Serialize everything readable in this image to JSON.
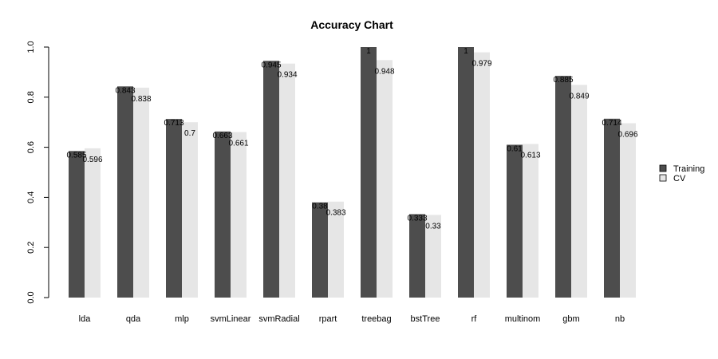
{
  "chart_data": {
    "type": "bar",
    "title": "Accuracy Chart",
    "xlabel": "",
    "ylabel": "",
    "ylim": [
      0,
      1
    ],
    "yticks": [
      "0.0",
      "0.2",
      "0.4",
      "0.6",
      "0.8",
      "1.0"
    ],
    "categories": [
      "lda",
      "qda",
      "mlp",
      "svmLinear",
      "svmRadial",
      "rpart",
      "treebag",
      "bstTree",
      "rf",
      "multinom",
      "gbm",
      "nb"
    ],
    "series": [
      {
        "name": "Training",
        "color": "#4d4d4d",
        "values": [
          0.585,
          0.843,
          0.713,
          0.663,
          0.945,
          0.38,
          1,
          0.333,
          1,
          0.61,
          0.885,
          0.714
        ],
        "labels": [
          "0.585",
          "0.843",
          "0.713",
          "0.663",
          "0.945",
          "0.38",
          "1",
          "0.333",
          "1",
          "0.61",
          "0.885",
          "0.714"
        ]
      },
      {
        "name": "CV",
        "color": "#e6e6e6",
        "values": [
          0.596,
          0.838,
          0.7,
          0.661,
          0.934,
          0.383,
          0.948,
          0.33,
          0.979,
          0.613,
          0.849,
          0.696
        ],
        "labels": [
          "0.596",
          "0.838",
          "0.7",
          "0.661",
          "0.934",
          "0.383",
          "0.948",
          "0.33",
          "0.979",
          "0.613",
          "0.849",
          "0.696"
        ]
      }
    ],
    "grid": false,
    "legend_position": "right"
  }
}
